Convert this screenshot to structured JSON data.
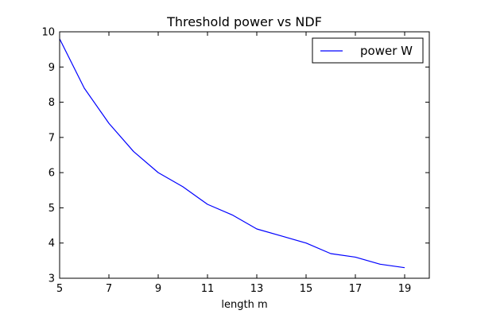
{
  "chart_data": {
    "type": "line",
    "title": "Threshold power vs NDF",
    "xlabel": "length m",
    "ylabel": "",
    "xlim": [
      5,
      20
    ],
    "ylim": [
      3,
      10
    ],
    "xticks": [
      5,
      7,
      9,
      11,
      13,
      15,
      17,
      19
    ],
    "yticks": [
      3,
      4,
      5,
      6,
      7,
      8,
      9,
      10
    ],
    "x": [
      5,
      6,
      7,
      8,
      9,
      10,
      11,
      12,
      13,
      14,
      15,
      16,
      17,
      18,
      19
    ],
    "series": [
      {
        "name": "power W",
        "color": "#0000ff",
        "values": [
          9.8,
          8.4,
          7.4,
          6.6,
          6.0,
          5.6,
          5.1,
          4.8,
          4.4,
          4.2,
          4.0,
          3.7,
          3.6,
          3.4,
          3.3
        ]
      }
    ],
    "legend": "top-right",
    "grid": false
  }
}
